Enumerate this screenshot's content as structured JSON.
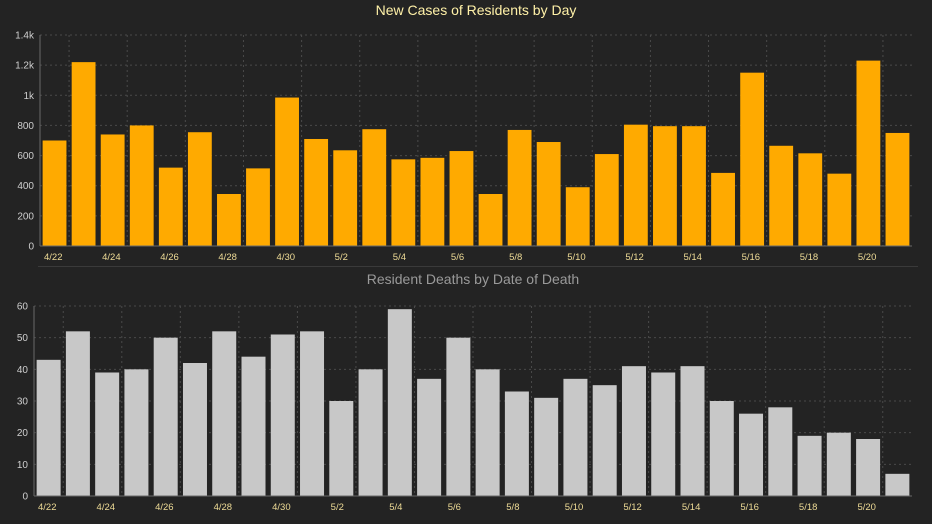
{
  "colors": {
    "background": "#232323",
    "cases_bar": "#FFAA00",
    "deaths_bar": "#C8C8C8",
    "cases_title": "#FFF1A8",
    "deaths_title": "#9A9A9A",
    "axis_text": "#CFCFCF",
    "x_tick_text": "#EEDB96",
    "grid": "#4A4A4A",
    "axis_line": "#6A6A6A"
  },
  "chart_data": [
    {
      "type": "bar",
      "title": "New Cases of Residents by Day",
      "xlabel": "",
      "ylabel": "",
      "ylim": [
        0,
        1400
      ],
      "y_ticks": [
        "0",
        "200",
        "400",
        "600",
        "800",
        "1k",
        "1.2k",
        "1.4k"
      ],
      "y_tick_values": [
        0,
        200,
        400,
        600,
        800,
        1000,
        1200,
        1400
      ],
      "grid": true,
      "x_tick_labels": [
        "4/22",
        "4/24",
        "4/26",
        "4/28",
        "4/30",
        "5/2",
        "5/4",
        "5/6",
        "5/8",
        "5/10",
        "5/12",
        "5/14",
        "5/16",
        "5/18",
        "5/20"
      ],
      "categories": [
        "4/22",
        "4/23",
        "4/24",
        "4/25",
        "4/26",
        "4/27",
        "4/28",
        "4/29",
        "4/30",
        "5/1",
        "5/2",
        "5/3",
        "5/4",
        "5/5",
        "5/6",
        "5/7",
        "5/8",
        "5/9",
        "5/10",
        "5/11",
        "5/12",
        "5/13",
        "5/14",
        "5/15",
        "5/16",
        "5/17",
        "5/18",
        "5/19",
        "5/20",
        "5/21"
      ],
      "values": [
        700,
        1220,
        740,
        800,
        520,
        755,
        345,
        515,
        985,
        710,
        635,
        775,
        575,
        585,
        630,
        345,
        770,
        690,
        390,
        610,
        805,
        795,
        795,
        485,
        1150,
        665,
        615,
        480,
        1230,
        750
      ]
    },
    {
      "type": "bar",
      "title": "Resident Deaths by Date of Death",
      "xlabel": "",
      "ylabel": "",
      "ylim": [
        0,
        60
      ],
      "y_ticks": [
        "0",
        "10",
        "20",
        "30",
        "40",
        "50",
        "60"
      ],
      "y_tick_values": [
        0,
        10,
        20,
        30,
        40,
        50,
        60
      ],
      "grid": true,
      "x_tick_labels": [
        "4/22",
        "4/24",
        "4/26",
        "4/28",
        "4/30",
        "5/2",
        "5/4",
        "5/6",
        "5/8",
        "5/10",
        "5/12",
        "5/14",
        "5/16",
        "5/18",
        "5/20"
      ],
      "categories": [
        "4/22",
        "4/23",
        "4/24",
        "4/25",
        "4/26",
        "4/27",
        "4/28",
        "4/29",
        "4/30",
        "5/1",
        "5/2",
        "5/3",
        "5/4",
        "5/5",
        "5/6",
        "5/7",
        "5/8",
        "5/9",
        "5/10",
        "5/11",
        "5/12",
        "5/13",
        "5/14",
        "5/15",
        "5/16",
        "5/17",
        "5/18",
        "5/19",
        "5/20",
        "5/21"
      ],
      "values": [
        43,
        52,
        39,
        40,
        50,
        42,
        52,
        44,
        51,
        52,
        30,
        40,
        59,
        37,
        50,
        40,
        33,
        31,
        37,
        35,
        41,
        39,
        41,
        30,
        26,
        28,
        19,
        20,
        18,
        7
      ]
    }
  ]
}
